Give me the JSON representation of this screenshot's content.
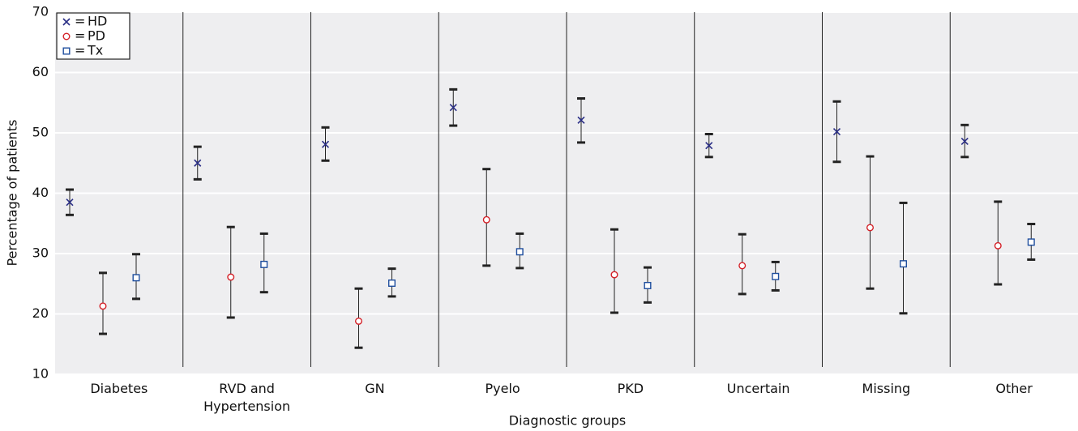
{
  "chart_data": {
    "type": "errorbar",
    "x_label": "Diagnostic groups",
    "y_label": "Percentage of patients",
    "categories": [
      "Diabetes",
      "RVD and\nHypertension",
      "GN",
      "Pyelo",
      "PKD",
      "Uncertain",
      "Missing",
      "Other"
    ],
    "legend_sign": "=",
    "series": [
      {
        "name": "HD",
        "color": "#2b2f86",
        "marker": "x",
        "values": [
          38.5,
          45.0,
          48.1,
          54.2,
          52.1,
          47.9,
          50.2,
          48.6
        ],
        "lower": [
          36.4,
          42.3,
          45.4,
          51.2,
          48.4,
          46.0,
          45.2,
          46.0
        ],
        "upper": [
          40.6,
          47.7,
          50.9,
          57.2,
          55.7,
          49.8,
          55.2,
          51.3
        ]
      },
      {
        "name": "PD",
        "color": "#d42027",
        "marker": "circle",
        "values": [
          21.3,
          26.1,
          18.8,
          35.6,
          26.5,
          28.0,
          34.3,
          31.3
        ],
        "lower": [
          16.7,
          19.4,
          14.4,
          28.0,
          20.2,
          23.3,
          24.2,
          24.9
        ],
        "upper": [
          26.8,
          34.4,
          24.2,
          44.0,
          34.0,
          33.2,
          46.1,
          38.6
        ]
      },
      {
        "name": "Tx",
        "color": "#1f4e9e",
        "marker": "square",
        "values": [
          26.0,
          28.2,
          25.1,
          30.3,
          24.7,
          26.2,
          28.3,
          31.9
        ],
        "lower": [
          22.5,
          23.6,
          22.9,
          27.6,
          21.9,
          23.9,
          20.1,
          29.0
        ],
        "upper": [
          29.9,
          33.3,
          27.5,
          33.3,
          27.7,
          28.6,
          38.4,
          34.9
        ]
      }
    ],
    "ylim": [
      10,
      70
    ],
    "yticks": [
      10,
      20,
      30,
      40,
      50,
      60,
      70
    ],
    "grid": true,
    "legend": "top-left"
  }
}
